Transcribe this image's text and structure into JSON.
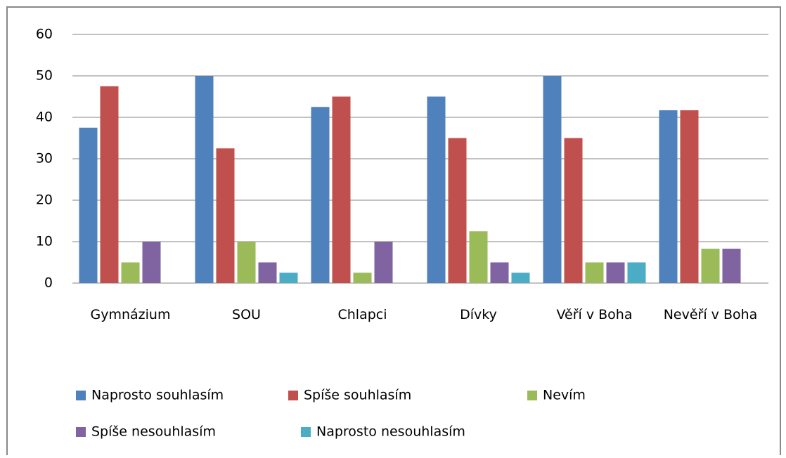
{
  "chart_data": {
    "type": "bar",
    "categories": [
      "Gymnázium",
      "SOU",
      "Chlapci",
      "Dívky",
      "Věří v Boha",
      "Nevěří v Boha"
    ],
    "series": [
      {
        "name": "Naprosto souhlasím",
        "color": "#4f81bd",
        "values": [
          37.5,
          50,
          42.5,
          45,
          50,
          41.7
        ]
      },
      {
        "name": "Spíše souhlasím",
        "color": "#c0504d",
        "values": [
          47.5,
          32.5,
          45,
          35,
          35,
          41.7
        ]
      },
      {
        "name": "Nevím",
        "color": "#9bbb59",
        "values": [
          5,
          10,
          2.5,
          12.5,
          5,
          8.3
        ]
      },
      {
        "name": "Spíše nesouhlasím",
        "color": "#8064a2",
        "values": [
          10,
          5,
          10,
          5,
          5,
          8.3
        ]
      },
      {
        "name": "Naprosto nesouhlasím",
        "color": "#4bacc6",
        "values": [
          0,
          2.5,
          0,
          2.5,
          5,
          0
        ]
      }
    ],
    "ylim": [
      0,
      60
    ],
    "yticks": [
      0,
      10,
      20,
      30,
      40,
      50,
      60
    ],
    "grid": true,
    "legend": "bottom"
  }
}
